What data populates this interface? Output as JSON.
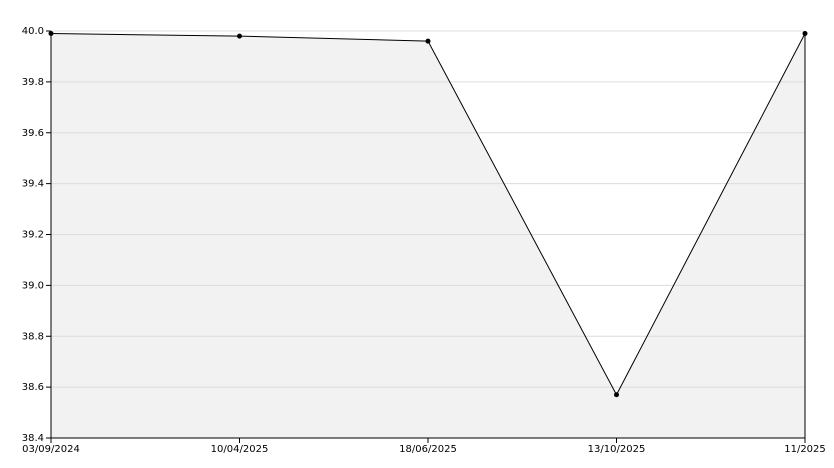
{
  "chart_data": {
    "type": "area",
    "categories": [
      "03/09/2024",
      "10/04/2025",
      "18/06/2025",
      "13/10/2025",
      "11/2025"
    ],
    "values": [
      39.99,
      39.98,
      39.96,
      38.57,
      39.99
    ],
    "color": "#000000",
    "fill": "#f2f2f2",
    "ylim": [
      38.4,
      40.0
    ],
    "yticks": [
      38.4,
      38.6,
      38.8,
      {
        "value": 39,
        "label": "39.0"
      },
      39.2,
      39.4,
      39.6,
      39.8,
      {
        "value": 40,
        "label": "40.0"
      }
    ],
    "grid": true
  }
}
